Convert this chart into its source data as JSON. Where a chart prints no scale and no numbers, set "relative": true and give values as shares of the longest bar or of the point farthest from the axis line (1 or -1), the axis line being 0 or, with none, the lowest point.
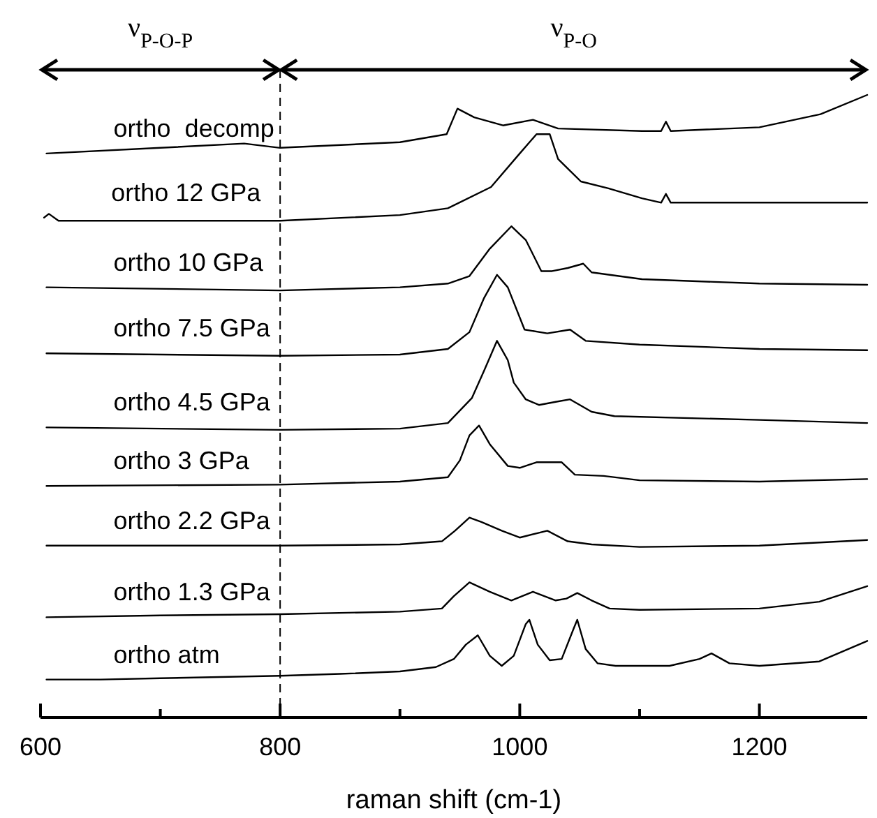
{
  "chart_data": {
    "type": "line",
    "relative": true,
    "xlabel": "raman shift (cm-1)",
    "xlim": [
      600,
      1290
    ],
    "xticks": [
      600,
      {
        "value": 700,
        "label": null
      },
      800,
      {
        "value": 900,
        "label": null
      },
      1000,
      {
        "value": 1100,
        "label": null
      },
      1200
    ],
    "grid": false,
    "marker": "none",
    "line_style": "solid",
    "ref_lines": [
      {
        "axis": "x",
        "value": 800,
        "line_style": "dashed"
      }
    ],
    "annotations": [
      "ν$_{P-O-P}$",
      "ν$_{P-O}$"
    ],
    "series": [
      {
        "name": "ortho atm",
        "color": "#000000",
        "x": [
          605,
          650,
          700,
          750,
          800,
          850,
          900,
          930,
          945,
          955,
          965,
          975,
          985,
          995,
          1005,
          1008,
          1015,
          1025,
          1035,
          1045,
          1048,
          1055,
          1065,
          1080,
          1100,
          1125,
          1150,
          1160,
          1175,
          1200,
          1250,
          1290
        ],
        "values": [
          0.061,
          0.061,
          0.063,
          0.065,
          0.067,
          0.07,
          0.074,
          0.081,
          0.094,
          0.117,
          0.132,
          0.099,
          0.083,
          0.099,
          0.15,
          0.157,
          0.117,
          0.092,
          0.094,
          0.143,
          0.157,
          0.11,
          0.087,
          0.083,
          0.083,
          0.083,
          0.094,
          0.103,
          0.087,
          0.083,
          0.09,
          0.123
        ]
      },
      {
        "name": "ortho 1.3 GPa",
        "color": "#000000",
        "x": [
          605,
          700,
          800,
          900,
          935,
          945,
          958,
          975,
          993,
          1011,
          1030,
          1039,
          1048,
          1060,
          1075,
          1100,
          1200,
          1250,
          1290
        ],
        "values": [
          0.161,
          0.164,
          0.166,
          0.17,
          0.175,
          0.195,
          0.217,
          0.202,
          0.188,
          0.202,
          0.188,
          0.191,
          0.2,
          0.188,
          0.175,
          0.173,
          0.175,
          0.186,
          0.211
        ]
      },
      {
        "name": "ortho 2.2 GPa",
        "color": "#000000",
        "x": [
          605,
          800,
          900,
          935,
          946,
          958,
          968,
          985,
          1000,
          1023,
          1040,
          1060,
          1100,
          1200,
          1290
        ],
        "values": [
          0.276,
          0.276,
          0.278,
          0.283,
          0.3,
          0.321,
          0.314,
          0.3,
          0.289,
          0.3,
          0.283,
          0.278,
          0.274,
          0.276,
          0.285
        ]
      },
      {
        "name": "ortho 3 GPa",
        "color": "#000000",
        "x": [
          605,
          800,
          900,
          940,
          950,
          958,
          966,
          975,
          990,
          1000,
          1014,
          1035,
          1046,
          1070,
          1100,
          1200,
          1290
        ],
        "values": [
          0.372,
          0.374,
          0.379,
          0.386,
          0.413,
          0.453,
          0.469,
          0.439,
          0.404,
          0.401,
          0.41,
          0.41,
          0.39,
          0.388,
          0.381,
          0.379,
          0.383
        ]
      },
      {
        "name": "ortho 4.5 GPa",
        "color": "#000000",
        "x": [
          605,
          800,
          900,
          940,
          960,
          970,
          981,
          990,
          995,
          1005,
          1016,
          1030,
          1042,
          1060,
          1079,
          1200,
          1290
        ],
        "values": [
          0.466,
          0.462,
          0.464,
          0.473,
          0.513,
          0.556,
          0.605,
          0.574,
          0.538,
          0.511,
          0.502,
          0.507,
          0.511,
          0.491,
          0.484,
          0.478,
          0.473
        ]
      },
      {
        "name": "ortho 7.5 GPa",
        "color": "#000000",
        "x": [
          605,
          800,
          900,
          940,
          958,
          970,
          981,
          990,
          1004,
          1023,
          1042,
          1055,
          1100,
          1200,
          1290
        ],
        "values": [
          0.585,
          0.581,
          0.583,
          0.592,
          0.619,
          0.673,
          0.711,
          0.691,
          0.623,
          0.617,
          0.623,
          0.605,
          0.599,
          0.592,
          0.59
        ]
      },
      {
        "name": "ortho 10 GPa",
        "color": "#000000",
        "x": [
          605,
          800,
          900,
          940,
          958,
          975,
          993,
          1005,
          1018,
          1027,
          1040,
          1053,
          1060,
          1102,
          1200,
          1290
        ],
        "values": [
          0.691,
          0.686,
          0.691,
          0.697,
          0.709,
          0.753,
          0.789,
          0.767,
          0.717,
          0.717,
          0.722,
          0.729,
          0.715,
          0.704,
          0.697,
          0.695
        ]
      },
      {
        "name": "ortho 12 GPa",
        "color": "#000000",
        "x": [
          603,
          607,
          615,
          800,
          900,
          940,
          976,
          1000,
          1014,
          1025,
          1032,
          1051,
          1074,
          1102,
          1118,
          1122,
          1126,
          1200,
          1290
        ],
        "values": [
          0.803,
          0.809,
          0.798,
          0.798,
          0.807,
          0.818,
          0.852,
          0.906,
          0.937,
          0.937,
          0.897,
          0.861,
          0.85,
          0.834,
          0.827,
          0.841,
          0.827,
          0.827,
          0.827
        ]
      },
      {
        "name": "ortho  decomp",
        "color": "#000000",
        "x": [
          605,
          700,
          770,
          800,
          900,
          939,
          948,
          962,
          986,
          1011,
          1032,
          1102,
          1118,
          1122,
          1126,
          1200,
          1251,
          1290
        ],
        "values": [
          0.906,
          0.915,
          0.922,
          0.915,
          0.924,
          0.937,
          0.978,
          0.964,
          0.951,
          0.96,
          0.946,
          0.942,
          0.942,
          0.957,
          0.942,
          0.948,
          0.969,
          1
        ]
      }
    ]
  }
}
